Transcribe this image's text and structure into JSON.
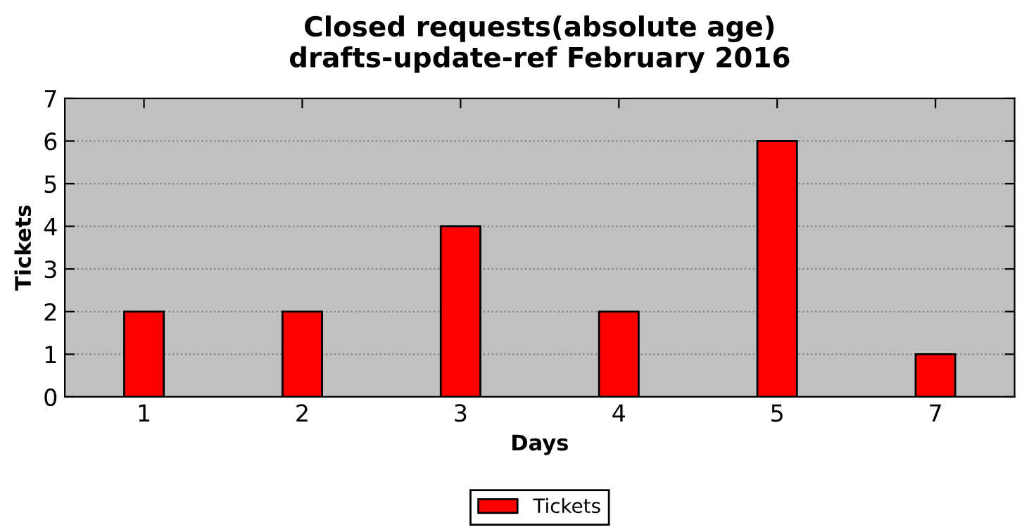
{
  "chart_data": {
    "type": "bar",
    "title": "Closed requests(absolute age)\ndrafts-update-ref February 2016",
    "xlabel": "Days",
    "ylabel": "Tickets",
    "categories": [
      "1",
      "2",
      "3",
      "4",
      "5",
      "7"
    ],
    "series": [
      {
        "name": "Tickets",
        "color": "#ff0000",
        "values": [
          2,
          2,
          4,
          2,
          6,
          1
        ]
      }
    ],
    "ylim": [
      0,
      7
    ],
    "yticks": [
      0,
      1,
      2,
      3,
      4,
      5,
      6,
      7
    ],
    "grid": "y",
    "legend": "bottom"
  }
}
